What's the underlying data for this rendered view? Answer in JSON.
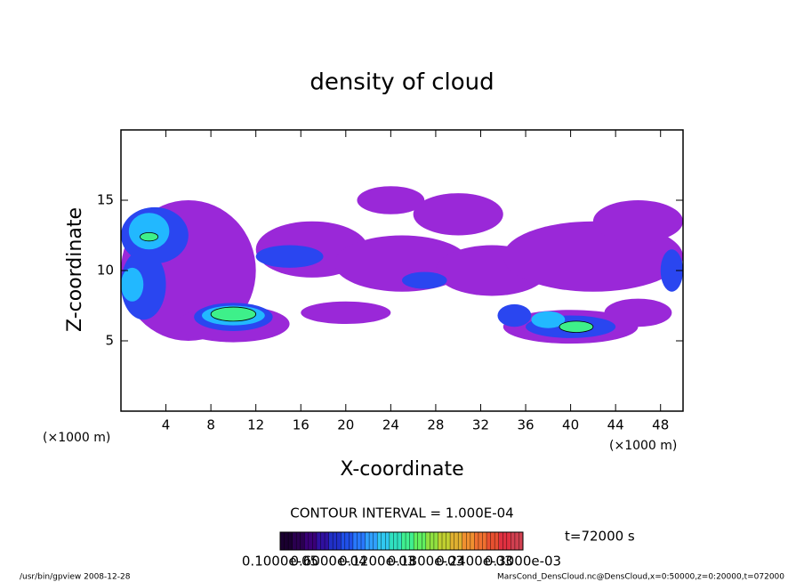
{
  "chart_data": {
    "type": "contour",
    "title": "density of cloud",
    "x_label": "X-coordinate",
    "y_label": "Z-coordinate",
    "x_unit_left": "(×1000 m)",
    "x_unit_right": "(×1000 m)",
    "xlim": [
      0,
      50
    ],
    "ylim": [
      0,
      20
    ],
    "xticks": [
      4,
      8,
      12,
      16,
      20,
      24,
      28,
      32,
      36,
      40,
      44,
      48
    ],
    "yticks": [
      5,
      10,
      15
    ],
    "contour_interval": "CONTOUR INTERVAL = 1.000E-04",
    "time_label": "t=72000 s",
    "footer_left": "/usr/bin/gpview   2008-12-28",
    "footer_right": "MarsCond_DensCloud.nc@DensCloud,x=0:50000,z=0:20000,t=072000",
    "levels": [
      1e-05,
      4e-05,
      7e-05,
      0.0001
    ],
    "level_colors": [
      "#9a28d8",
      "#2a46f0",
      "#22b8ff",
      "#3ef08a"
    ],
    "colorbar_colors": [
      "#1a0030",
      "#2a0050",
      "#3a0078",
      "#3010a0",
      "#2030c8",
      "#2050e8",
      "#2878ff",
      "#30a0ff",
      "#30c8f0",
      "#30e0c0",
      "#40f090",
      "#60f060",
      "#90e040",
      "#c0d030",
      "#e0b030",
      "#f09030",
      "#f07030",
      "#e85030",
      "#e03040",
      "#d04050"
    ],
    "colorbar_labels": [
      "0.1000e-05",
      "0.6000e-04",
      "0.1200e-03",
      "0.1800e-03",
      "0.2400e-03",
      "0.3000e-03"
    ],
    "regions": [
      {
        "x": 6,
        "z": 10,
        "rx": 6,
        "rz": 5,
        "value": 2e-05
      },
      {
        "x": 17,
        "z": 11.5,
        "rx": 5,
        "rz": 2,
        "value": 2e-05
      },
      {
        "x": 25,
        "z": 10.5,
        "rx": 6,
        "rz": 2,
        "value": 2e-05
      },
      {
        "x": 33,
        "z": 10,
        "rx": 5,
        "rz": 1.8,
        "value": 2e-05
      },
      {
        "x": 42,
        "z": 11,
        "rx": 8,
        "rz": 2.5,
        "value": 2e-05
      },
      {
        "x": 46,
        "z": 13.5,
        "rx": 4,
        "rz": 1.5,
        "value": 2e-05
      },
      {
        "x": 24,
        "z": 15,
        "rx": 3,
        "rz": 1,
        "value": 2e-05
      },
      {
        "x": 30,
        "z": 14,
        "rx": 4,
        "rz": 1.5,
        "value": 2e-05
      },
      {
        "x": 10,
        "z": 6.2,
        "rx": 5,
        "rz": 1.3,
        "value": 2e-05
      },
      {
        "x": 40,
        "z": 6,
        "rx": 6,
        "rz": 1.2,
        "value": 2e-05
      },
      {
        "x": 20,
        "z": 7,
        "rx": 4,
        "rz": 0.8,
        "value": 2e-05
      },
      {
        "x": 46,
        "z": 7,
        "rx": 3,
        "rz": 1,
        "value": 2e-05
      },
      {
        "x": 3,
        "z": 12.5,
        "rx": 3,
        "rz": 2,
        "value": 5e-05
      },
      {
        "x": 2,
        "z": 9,
        "rx": 2,
        "rz": 2.5,
        "value": 5e-05
      },
      {
        "x": 10,
        "z": 6.7,
        "rx": 3.5,
        "rz": 1,
        "value": 5e-05
      },
      {
        "x": 40,
        "z": 6,
        "rx": 4,
        "rz": 0.8,
        "value": 5e-05
      },
      {
        "x": 35,
        "z": 6.8,
        "rx": 1.5,
        "rz": 0.8,
        "value": 5e-05
      },
      {
        "x": 15,
        "z": 11,
        "rx": 3,
        "rz": 0.8,
        "value": 5e-05
      },
      {
        "x": 27,
        "z": 9.3,
        "rx": 2,
        "rz": 0.6,
        "value": 5e-05
      },
      {
        "x": 49,
        "z": 10,
        "rx": 1,
        "rz": 1.5,
        "value": 5e-05
      },
      {
        "x": 2.5,
        "z": 12.8,
        "rx": 1.8,
        "rz": 1.3,
        "value": 8e-05
      },
      {
        "x": 10,
        "z": 6.8,
        "rx": 2.8,
        "rz": 0.7,
        "value": 8e-05
      },
      {
        "x": 38,
        "z": 6.5,
        "rx": 1.5,
        "rz": 0.6,
        "value": 8e-05
      },
      {
        "x": 1,
        "z": 9,
        "rx": 1,
        "rz": 1.2,
        "value": 8e-05
      },
      {
        "x": 10,
        "z": 6.9,
        "rx": 2,
        "rz": 0.5,
        "value": 0.00011
      },
      {
        "x": 40.5,
        "z": 6,
        "rx": 1.5,
        "rz": 0.4,
        "value": 0.00011
      },
      {
        "x": 2.5,
        "z": 12.4,
        "rx": 0.8,
        "rz": 0.3,
        "value": 0.00011
      }
    ]
  }
}
